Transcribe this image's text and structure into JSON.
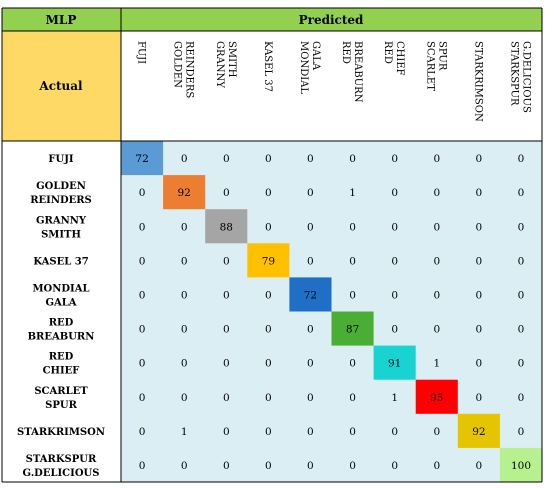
{
  "table": {
    "corner_label": "MLP",
    "predicted_label": "Predicted",
    "actual_label": "Actual"
  },
  "colors": {
    "header_green": "#92d050",
    "actual_yellow": "#ffd966",
    "body_blue": "#dbeef4",
    "grid": "#000000",
    "diag": [
      "#5b9bd5",
      "#ed7d31",
      "#a5a5a5",
      "#ffc000",
      "#1f6fc6",
      "#4bae34",
      "#19d3d3",
      "#ff0000",
      "#e5c400",
      "#b7f08e"
    ]
  },
  "chart_data": {
    "type": "heatmap",
    "title": "MLP",
    "xlabel": "Predicted",
    "ylabel": "Actual",
    "categories": [
      "FUJI",
      "GOLDEN REINDERS",
      "GRANNY SMITH",
      "KASEL 37",
      "MONDIAL GALA",
      "RED BREABURN",
      "RED CHIEF",
      "SCARLET SPUR",
      "STARKRIMSON",
      "STARKSPUR G.DELICIOUS"
    ],
    "col_labels": [
      [
        "FUJI"
      ],
      [
        "GOLDEN",
        "REINDERS"
      ],
      [
        "GRANNY",
        "SMITH"
      ],
      [
        "KASEL 37"
      ],
      [
        "MONDIAL",
        "GALA"
      ],
      [
        "RED",
        "BREABURN"
      ],
      [
        "RED",
        "CHIEF"
      ],
      [
        "SCARLET",
        "SPUR"
      ],
      [
        "STARKRIMSON"
      ],
      [
        "STARKSPUR",
        "G.DELICIOUS"
      ]
    ],
    "row_labels": [
      [
        "FUJI"
      ],
      [
        "GOLDEN",
        "REINDERS"
      ],
      [
        "GRANNY",
        "SMITH"
      ],
      [
        "KASEL 37"
      ],
      [
        "MONDIAL",
        "GALA"
      ],
      [
        "RED",
        "BREABURN"
      ],
      [
        "RED",
        "CHIEF"
      ],
      [
        "SCARLET",
        "SPUR"
      ],
      [
        "STARKRIMSON"
      ],
      [
        "STARKSPUR",
        "G.DELICIOUS"
      ]
    ],
    "matrix": [
      [
        72,
        0,
        0,
        0,
        0,
        0,
        0,
        0,
        0,
        0
      ],
      [
        0,
        92,
        0,
        0,
        0,
        1,
        0,
        0,
        0,
        0
      ],
      [
        0,
        0,
        88,
        0,
        0,
        0,
        0,
        0,
        0,
        0
      ],
      [
        0,
        0,
        0,
        79,
        0,
        0,
        0,
        0,
        0,
        0
      ],
      [
        0,
        0,
        0,
        0,
        72,
        0,
        0,
        0,
        0,
        0
      ],
      [
        0,
        0,
        0,
        0,
        0,
        87,
        0,
        0,
        0,
        0
      ],
      [
        0,
        0,
        0,
        0,
        0,
        0,
        91,
        1,
        0,
        0
      ],
      [
        0,
        0,
        0,
        0,
        0,
        0,
        1,
        95,
        0,
        0
      ],
      [
        0,
        1,
        0,
        0,
        0,
        0,
        0,
        0,
        92,
        0
      ],
      [
        0,
        0,
        0,
        0,
        0,
        0,
        0,
        0,
        0,
        100
      ]
    ]
  }
}
